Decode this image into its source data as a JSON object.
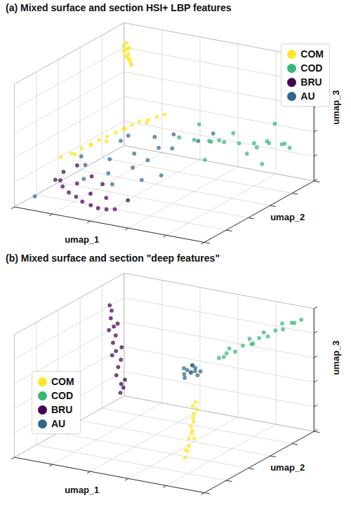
{
  "chart_data": [
    {
      "type": "scatter3d",
      "title": "(a) Mixed surface and section HSI+ LBP features",
      "x_label": "umap_1",
      "y_label": "umap_2",
      "z_label": "umap_3",
      "xlim": [
        0,
        10
      ],
      "ylim": [
        0,
        10
      ],
      "zlim": [
        0,
        10
      ],
      "xticks": [
        0,
        2,
        4,
        6,
        8,
        10
      ],
      "yticks": [
        0,
        2,
        4,
        6,
        8,
        10
      ],
      "zticks": [
        0,
        2,
        4,
        6,
        8,
        10
      ],
      "grid": true,
      "tick_labels": false,
      "legend": "upper right",
      "series": [
        {
          "name": "COM",
          "color": "#fde725",
          "points": [
            [
              1.0,
              8.5,
              9.4
            ],
            [
              1.2,
              8.4,
              9.1
            ],
            [
              0.9,
              8.6,
              8.8
            ],
            [
              1.1,
              8.5,
              8.5
            ],
            [
              1.3,
              8.3,
              8.2
            ],
            [
              1.0,
              8.7,
              8.0
            ],
            [
              1.2,
              8.5,
              7.8
            ],
            [
              0.8,
              8.6,
              8.6
            ],
            [
              1.1,
              8.4,
              9.0
            ],
            [
              1.0,
              8.5,
              8.3
            ],
            [
              1.2,
              8.6,
              7.6
            ],
            [
              0.9,
              8.4,
              9.2
            ],
            [
              1.0,
              2.5,
              3.1
            ],
            [
              1.5,
              2.6,
              3.5
            ],
            [
              2.0,
              2.7,
              4.0
            ],
            [
              2.4,
              2.8,
              4.3
            ],
            [
              2.8,
              2.9,
              4.8
            ],
            [
              3.2,
              2.9,
              5.2
            ],
            [
              3.6,
              3.0,
              5.6
            ],
            [
              4.0,
              3.0,
              6.0
            ],
            [
              4.4,
              3.1,
              6.4
            ],
            [
              4.8,
              3.1,
              6.8
            ],
            [
              5.2,
              3.2,
              7.0
            ],
            [
              5.6,
              3.3,
              7.3
            ],
            [
              6.0,
              3.3,
              7.6
            ],
            [
              1.8,
              2.4,
              3.6
            ],
            [
              3.0,
              3.2,
              4.6
            ],
            [
              4.2,
              2.8,
              6.2
            ],
            [
              5.0,
              3.4,
              6.6
            ],
            [
              2.6,
              2.5,
              4.6
            ]
          ]
        },
        {
          "name": "COD",
          "color": "#35b779",
          "points": [
            [
              5.5,
              5.5,
              4.5
            ],
            [
              6.0,
              6.0,
              4.2
            ],
            [
              6.5,
              6.5,
              4.0
            ],
            [
              7.0,
              7.0,
              3.8
            ],
            [
              7.5,
              7.5,
              3.6
            ],
            [
              8.0,
              8.0,
              3.5
            ],
            [
              8.5,
              8.5,
              3.4
            ],
            [
              9.0,
              8.8,
              3.3
            ],
            [
              9.3,
              9.0,
              3.0
            ],
            [
              6.2,
              7.2,
              3.5
            ],
            [
              7.2,
              6.2,
              4.4
            ],
            [
              8.2,
              7.0,
              3.2
            ],
            [
              8.8,
              7.8,
              4.0
            ],
            [
              7.8,
              8.6,
              2.8
            ],
            [
              6.8,
              5.6,
              3.0
            ],
            [
              9.0,
              7.0,
              2.6
            ],
            [
              5.8,
              6.8,
              5.0
            ],
            [
              8.4,
              9.2,
              4.6
            ],
            [
              7.6,
              6.8,
              4.8
            ],
            [
              9.5,
              8.2,
              3.8
            ]
          ]
        },
        {
          "name": "BRU",
          "color": "#440154",
          "points": [
            [
              1.0,
              2.0,
              1.5
            ],
            [
              1.5,
              1.8,
              1.2
            ],
            [
              2.0,
              1.5,
              1.0
            ],
            [
              2.5,
              1.3,
              0.9
            ],
            [
              3.0,
              1.0,
              0.8
            ],
            [
              3.5,
              0.9,
              0.7
            ],
            [
              4.0,
              0.7,
              0.7
            ],
            [
              4.5,
              0.6,
              0.8
            ],
            [
              5.0,
              0.5,
              1.0
            ],
            [
              1.2,
              2.4,
              2.0
            ],
            [
              2.2,
              1.9,
              1.6
            ],
            [
              3.2,
              1.4,
              1.3
            ],
            [
              4.2,
              1.1,
              1.4
            ],
            [
              2.8,
              2.2,
              2.2
            ],
            [
              1.8,
              2.6,
              2.6
            ],
            [
              3.6,
              1.8,
              2.0
            ],
            [
              5.4,
              1.0,
              1.6
            ],
            [
              0.8,
              2.8,
              1.0
            ]
          ]
        },
        {
          "name": "AU",
          "color": "#31688e",
          "points": [
            [
              3.0,
              3.5,
              3.0
            ],
            [
              4.0,
              4.0,
              3.5
            ],
            [
              5.0,
              4.5,
              4.0
            ],
            [
              3.5,
              2.5,
              2.5
            ],
            [
              4.5,
              3.0,
              3.0
            ],
            [
              6.0,
              4.0,
              4.5
            ],
            [
              2.0,
              3.0,
              2.5
            ],
            [
              5.5,
              5.0,
              5.0
            ],
            [
              4.0,
              2.0,
              2.0
            ],
            [
              6.5,
              5.5,
              4.5
            ],
            [
              3.0,
              4.5,
              4.0
            ],
            [
              5.0,
              3.5,
              3.5
            ],
            [
              2.5,
              2.0,
              2.0
            ],
            [
              7.0,
              6.0,
              5.0
            ],
            [
              4.5,
              5.0,
              4.5
            ],
            [
              1.5,
              3.5,
              2.8
            ],
            [
              6.0,
              3.0,
              2.8
            ],
            [
              3.8,
              3.8,
              5.0
            ],
            [
              0.5,
              1.0,
              0.5
            ],
            [
              5.2,
              2.6,
              2.4
            ]
          ]
        }
      ]
    },
    {
      "type": "scatter3d",
      "title": "(b) Mixed surface and section \"deep features\"",
      "x_label": "umap_1",
      "y_label": "umap_2",
      "z_label": "umap_3",
      "xlim": [
        0,
        10
      ],
      "ylim": [
        0,
        10
      ],
      "zlim": [
        0,
        10
      ],
      "xticks": [
        0,
        2,
        4,
        6,
        8,
        10
      ],
      "yticks": [
        0,
        2,
        4,
        6,
        8,
        10
      ],
      "zticks": [
        0,
        2,
        4,
        6,
        8,
        10
      ],
      "grid": true,
      "tick_labels": false,
      "legend": "center left",
      "series": [
        {
          "name": "COM",
          "color": "#fde725",
          "points": [
            [
              8.4,
              1.0,
              1.9
            ],
            [
              8.5,
              1.1,
              2.4
            ],
            [
              8.6,
              1.0,
              2.9
            ],
            [
              8.5,
              1.2,
              3.4
            ],
            [
              8.7,
              1.1,
              3.9
            ],
            [
              8.6,
              1.2,
              4.4
            ],
            [
              8.8,
              1.1,
              4.9
            ],
            [
              8.7,
              1.3,
              5.4
            ],
            [
              8.9,
              1.2,
              5.9
            ],
            [
              8.8,
              1.3,
              6.4
            ],
            [
              8.5,
              0.9,
              2.6
            ],
            [
              8.8,
              1.0,
              4.2
            ],
            [
              8.6,
              1.4,
              5.0
            ],
            [
              8.9,
              1.0,
              3.6
            ],
            [
              8.7,
              1.2,
              6.1
            ]
          ]
        },
        {
          "name": "COD",
          "color": "#35b779",
          "points": [
            [
              5.4,
              9.3,
              5.0
            ],
            [
              5.8,
              9.3,
              5.5
            ],
            [
              6.2,
              9.4,
              5.7
            ],
            [
              6.6,
              9.4,
              6.3
            ],
            [
              7.0,
              9.5,
              6.5
            ],
            [
              7.4,
              9.5,
              7.1
            ],
            [
              7.8,
              9.6,
              7.3
            ],
            [
              8.2,
              9.6,
              7.9
            ],
            [
              8.6,
              9.6,
              8.1
            ],
            [
              9.0,
              9.7,
              8.7
            ],
            [
              9.5,
              9.7,
              9.1
            ],
            [
              6.0,
              9.2,
              6.0
            ],
            [
              6.9,
              9.5,
              6.9
            ],
            [
              7.7,
              9.4,
              7.7
            ],
            [
              8.5,
              9.7,
              8.5
            ],
            [
              5.6,
              9.4,
              5.1
            ],
            [
              9.2,
              9.6,
              8.8
            ],
            [
              7.2,
              9.3,
              6.7
            ]
          ]
        },
        {
          "name": "BRU",
          "color": "#440154",
          "points": [
            [
              0.5,
              8.8,
              1.0
            ],
            [
              0.6,
              8.7,
              1.8
            ],
            [
              0.4,
              8.6,
              2.5
            ],
            [
              0.5,
              8.6,
              3.2
            ],
            [
              0.7,
              8.5,
              3.9
            ],
            [
              0.5,
              8.4,
              4.6
            ],
            [
              0.4,
              8.3,
              5.3
            ],
            [
              0.6,
              8.2,
              6.0
            ],
            [
              0.5,
              8.2,
              6.7
            ],
            [
              0.4,
              8.1,
              7.4
            ],
            [
              0.5,
              8.0,
              8.1
            ],
            [
              0.8,
              8.7,
              2.2
            ],
            [
              0.3,
              8.4,
              4.2
            ],
            [
              0.8,
              8.4,
              5.0
            ],
            [
              0.3,
              8.1,
              6.4
            ],
            [
              0.7,
              8.2,
              7.0
            ],
            [
              0.6,
              8.9,
              1.4
            ],
            [
              0.4,
              8.0,
              8.5
            ]
          ]
        },
        {
          "name": "AU",
          "color": "#31688e",
          "points": [
            [
              5.3,
              6.9,
              5.0
            ],
            [
              5.0,
              6.8,
              5.3
            ],
            [
              5.6,
              7.0,
              4.8
            ],
            [
              5.2,
              7.2,
              5.4
            ],
            [
              5.5,
              6.6,
              5.2
            ],
            [
              4.9,
              7.0,
              4.7
            ],
            [
              5.4,
              6.9,
              5.6
            ],
            [
              5.1,
              6.7,
              4.6
            ],
            [
              5.7,
              7.1,
              5.1
            ],
            [
              5.3,
              7.3,
              4.9
            ],
            [
              5.0,
              7.1,
              5.0
            ],
            [
              5.6,
              6.8,
              5.5
            ]
          ]
        }
      ]
    }
  ]
}
